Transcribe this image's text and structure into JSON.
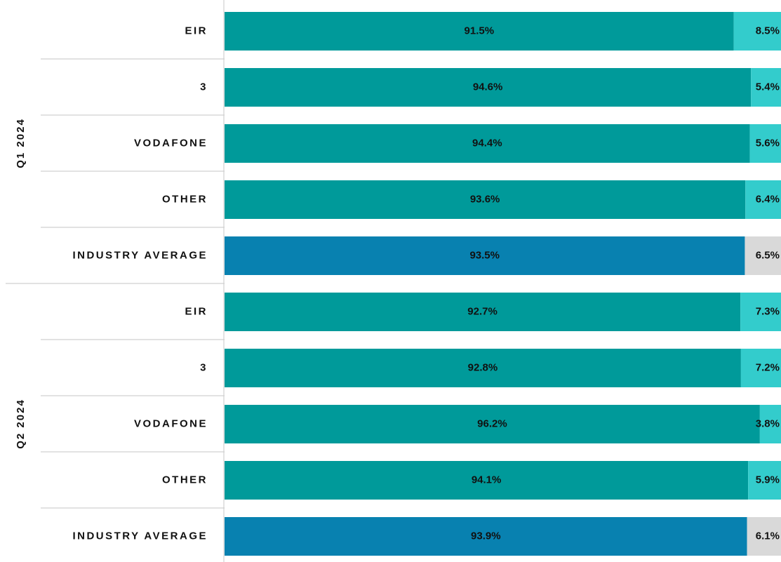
{
  "chart_data": {
    "type": "bar",
    "orientation": "horizontal",
    "stacked": true,
    "xlim": [
      0,
      100
    ],
    "groups": [
      {
        "name": "Q1 2024",
        "categories": [
          "EIR",
          "3",
          "VODAFONE",
          "OTHER",
          "INDUSTRY AVERAGE"
        ],
        "series": [
          {
            "colors": [
              "#009a9a",
              "#009a9a",
              "#009a9a",
              "#009a9a",
              "#0881b0"
            ],
            "values": [
              91.5,
              94.6,
              94.4,
              93.6,
              93.5
            ],
            "value_labels": [
              "91.5%",
              "94.6%",
              "94.4%",
              "93.6%",
              "93.5%"
            ]
          },
          {
            "colors": [
              "#33cccc",
              "#33cccc",
              "#33cccc",
              "#33cccc",
              "#d9d9d9"
            ],
            "values": [
              8.5,
              5.4,
              5.6,
              6.4,
              6.5
            ],
            "value_labels": [
              "8.5%",
              "5.4%",
              "5.6%",
              "6.4%",
              "6.5%"
            ]
          }
        ]
      },
      {
        "name": "Q2 2024",
        "categories": [
          "EIR",
          "3",
          "VODAFONE",
          "OTHER",
          "INDUSTRY AVERAGE"
        ],
        "series": [
          {
            "colors": [
              "#009a9a",
              "#009a9a",
              "#009a9a",
              "#009a9a",
              "#0881b0"
            ],
            "values": [
              92.7,
              92.8,
              96.2,
              94.1,
              93.9
            ],
            "value_labels": [
              "92.7%",
              "92.8%",
              "96.2%",
              "94.1%",
              "93.9%"
            ]
          },
          {
            "colors": [
              "#33cccc",
              "#33cccc",
              "#33cccc",
              "#33cccc",
              "#d9d9d9"
            ],
            "values": [
              7.3,
              7.2,
              3.8,
              5.9,
              6.1
            ],
            "value_labels": [
              "7.3%",
              "7.2%",
              "3.8%",
              "5.9%",
              "6.1%"
            ]
          }
        ]
      }
    ]
  }
}
